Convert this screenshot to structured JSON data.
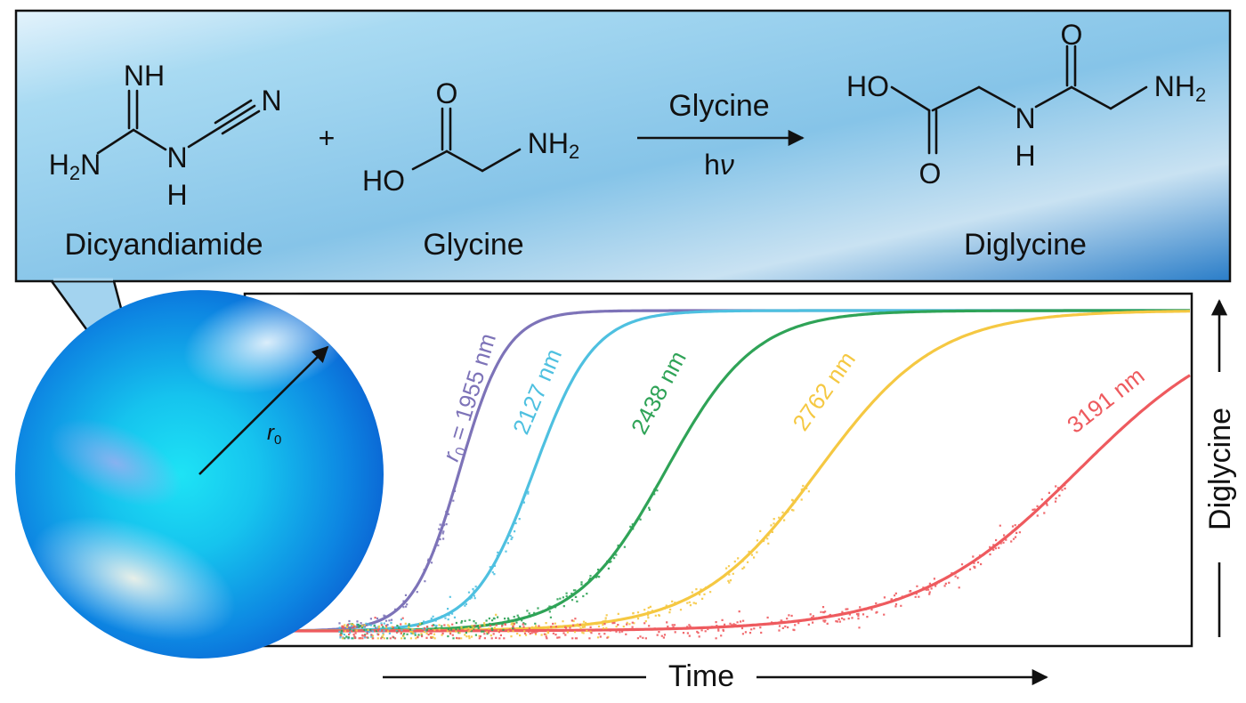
{
  "reaction": {
    "reactant1": {
      "name": "Dicyandiamide",
      "atoms": {
        "imine": "NH",
        "amine": "H2N",
        "nitrile": "N",
        "nh_n": "N",
        "nh_h": "H"
      }
    },
    "plus": "+",
    "reactant2": {
      "name": "Glycine",
      "atoms": {
        "carbonyl_o": "O",
        "hydroxyl": "HO",
        "amine": "NH2"
      }
    },
    "arrow": {
      "above": "Glycine",
      "below": "hν"
    },
    "product": {
      "name": "Diglycine",
      "atoms": {
        "hydroxyl": "HO",
        "carbonyl_o1": "O",
        "amide_n": "N",
        "amide_h": "H",
        "carbonyl_o2": "O",
        "amine": "NH2"
      }
    }
  },
  "droplet": {
    "radius_label": "r0",
    "colors": {
      "outer": "#0a5fd6",
      "inner": "#1ed8f2"
    }
  },
  "chart_data": {
    "type": "line",
    "title": "",
    "xlabel": "Time",
    "ylabel": "Diglycine",
    "ylim": [
      0,
      1
    ],
    "x_scale": "arbitrary",
    "series": [
      {
        "name": "r0 = 1955 nm",
        "label_prefix": "r0",
        "label_value": "= 1955 nm",
        "color": "#7d73b8",
        "midpoint": 0.185,
        "steepness": 38
      },
      {
        "name": "2127 nm",
        "color": "#4ec0e0",
        "midpoint": 0.268,
        "steepness": 30
      },
      {
        "name": "2438 nm",
        "color": "#2fa357",
        "midpoint": 0.415,
        "steepness": 20
      },
      {
        "name": "2762 nm",
        "color": "#f5c842",
        "midpoint": 0.585,
        "steepness": 15
      },
      {
        "name": "3191 nm",
        "color": "#ee5a5e",
        "midpoint": 0.875,
        "steepness": 11
      }
    ]
  }
}
